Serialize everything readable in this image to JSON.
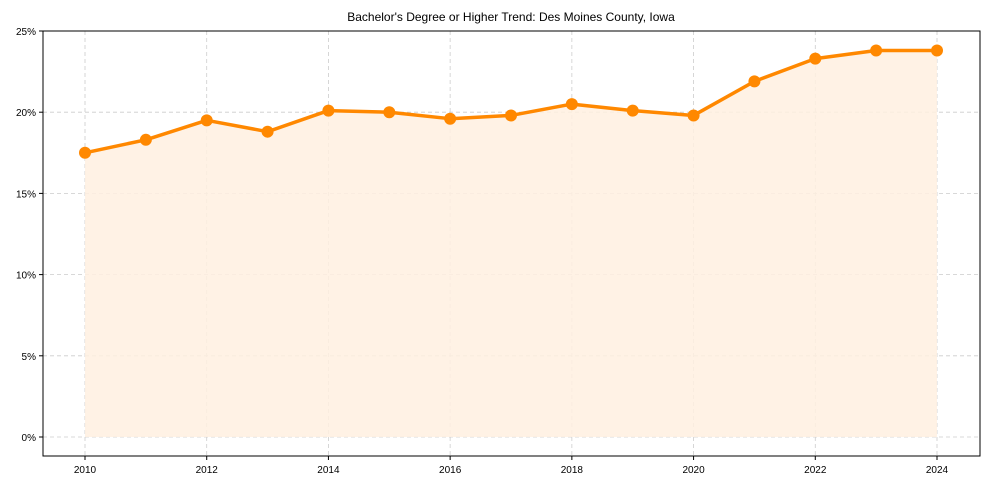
{
  "chart_data": {
    "type": "line",
    "title": "Bachelor's Degree or Higher Trend: Des Moines County, Iowa",
    "xlabel": "",
    "ylabel": "",
    "x": [
      2010,
      2011,
      2012,
      2013,
      2014,
      2015,
      2016,
      2017,
      2018,
      2019,
      2020,
      2021,
      2022,
      2023,
      2024
    ],
    "series": [
      {
        "name": "Bachelor's Degree or Higher",
        "values": [
          17.5,
          18.3,
          19.5,
          18.8,
          20.1,
          20.0,
          19.6,
          19.8,
          20.5,
          20.1,
          19.8,
          21.9,
          23.3,
          23.8,
          23.8
        ],
        "color": "#ff8800",
        "fill": "#fff0e0"
      }
    ],
    "x_ticks": [
      "2010",
      "2012",
      "2014",
      "2016",
      "2018",
      "2020",
      "2022",
      "2024"
    ],
    "y_ticks": [
      "0%",
      "5%",
      "10%",
      "15%",
      "20%",
      "25%"
    ],
    "ylim": [
      -1.2,
      25
    ],
    "xlim": [
      2009.3,
      2024.7
    ],
    "grid": true,
    "legend": "none"
  }
}
